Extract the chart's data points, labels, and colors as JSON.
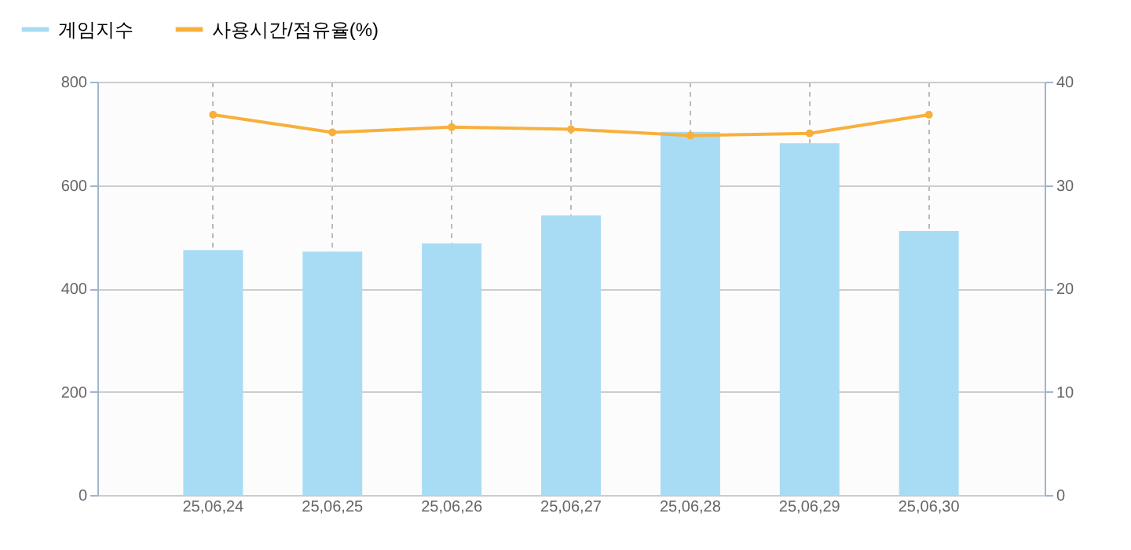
{
  "chart_data": {
    "type": "bar",
    "categories": [
      "25,06,24",
      "25,06,25",
      "25,06,26",
      "25,06,27",
      "25,06,28",
      "25,06,29",
      "25,06,30"
    ],
    "series": [
      {
        "name": "게임지수",
        "color": "#a8dcf5",
        "values": [
          474,
          471,
          487,
          541,
          703,
          681,
          511
        ]
      },
      {
        "name": "사용시간/점유율(%)",
        "type": "line",
        "axis": "y2",
        "color": "#f7b03c",
        "values": [
          36.8,
          35.1,
          35.6,
          35.4,
          34.8,
          35.0,
          36.8
        ]
      }
    ],
    "ylim": [
      0,
      800
    ],
    "yticks": [
      0,
      200,
      400,
      600,
      800
    ],
    "y2lim": [
      0,
      40
    ],
    "y2ticks": [
      0,
      10,
      20,
      30,
      40
    ],
    "grid": true,
    "legend": "top left",
    "marker": "circle",
    "line_style": "solid"
  }
}
